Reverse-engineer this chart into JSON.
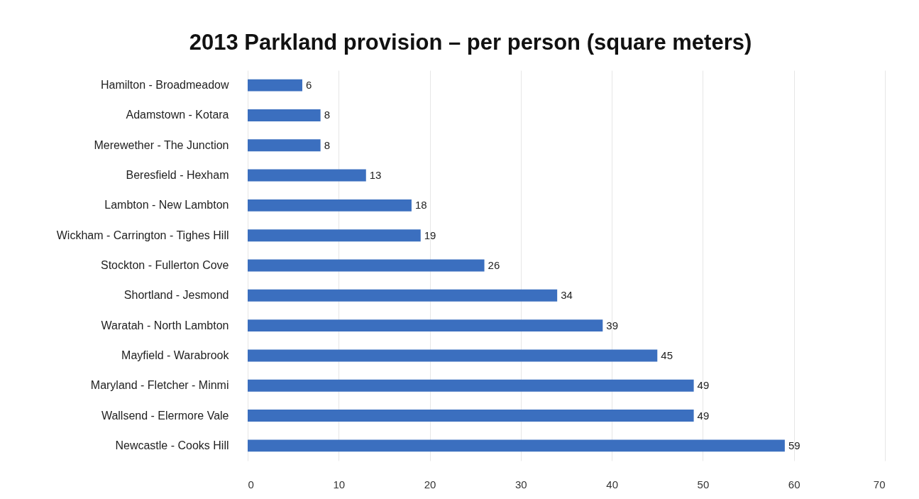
{
  "chart_data": {
    "type": "bar",
    "orientation": "horizontal",
    "title": "2013 Parkland provision – per person (square meters)",
    "categories": [
      "Hamilton - Broadmeadow",
      "Adamstown - Kotara",
      "Merewether - The Junction",
      "Beresfield - Hexham",
      "Lambton - New Lambton",
      "Wickham - Carrington - Tighes Hill",
      "Stockton - Fullerton Cove",
      "Shortland - Jesmond",
      "Waratah - North Lambton",
      "Mayfield - Warabrook",
      "Maryland - Fletcher - Minmi",
      "Wallsend - Elermore Vale",
      "Newcastle - Cooks Hill"
    ],
    "values": [
      6,
      8,
      8,
      13,
      18,
      19,
      26,
      34,
      39,
      45,
      49,
      49,
      59
    ],
    "color": "#3b6fbf",
    "xlim": [
      0,
      70
    ],
    "xticks": [
      0,
      10,
      20,
      30,
      40,
      50,
      60,
      70
    ],
    "grid": "x",
    "data_labels": true
  }
}
